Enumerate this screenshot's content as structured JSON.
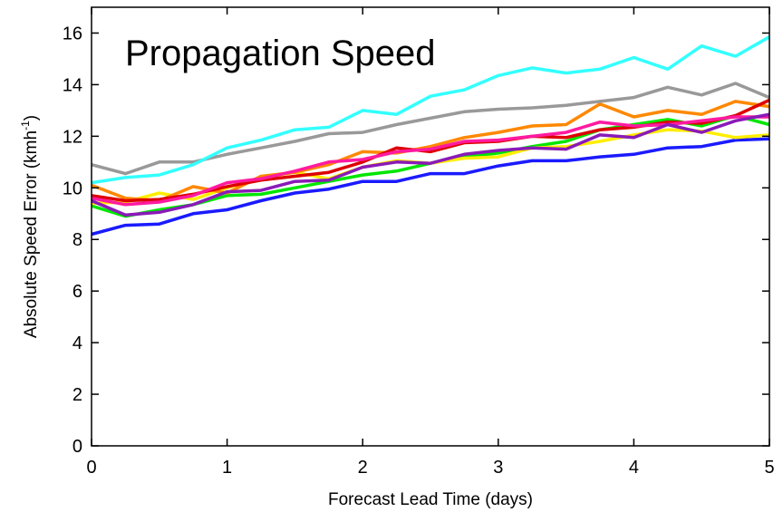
{
  "chart_data": {
    "type": "line",
    "title": "Propagation Speed",
    "xlabel": "Forecast Lead Time (days)",
    "ylabel_main": "Absolute Speed Error (kmh",
    "ylabel_sup": "-1",
    "ylabel_close": ")",
    "xlim": [
      0,
      5
    ],
    "ylim": [
      0,
      17
    ],
    "xticks": [
      0,
      1,
      2,
      3,
      4,
      5
    ],
    "yticks": [
      0,
      2,
      4,
      6,
      8,
      10,
      12,
      14,
      16
    ],
    "grid": false,
    "x": [
      0,
      0.25,
      0.5,
      0.75,
      1,
      1.25,
      1.5,
      1.75,
      2,
      2.25,
      2.5,
      2.75,
      3,
      3.25,
      3.5,
      3.75,
      4,
      4.25,
      4.5,
      4.75,
      5
    ],
    "series": [
      {
        "color": "#1a1aff",
        "values": [
          8.2,
          8.55,
          8.6,
          9.0,
          9.15,
          9.5,
          9.8,
          9.95,
          10.25,
          10.25,
          10.55,
          10.55,
          10.85,
          11.05,
          11.05,
          11.2,
          11.3,
          11.55,
          11.6,
          11.85,
          11.9
        ]
      },
      {
        "color": "#00e600",
        "values": [
          9.3,
          8.9,
          9.15,
          9.35,
          9.7,
          9.75,
          10.0,
          10.25,
          10.5,
          10.65,
          10.95,
          11.2,
          11.35,
          11.6,
          11.8,
          12.25,
          12.45,
          12.65,
          12.4,
          12.8,
          12.45
        ]
      },
      {
        "color": "#ffee00",
        "values": [
          9.4,
          9.45,
          9.8,
          9.55,
          10.0,
          10.4,
          10.6,
          10.35,
          10.8,
          11.05,
          10.95,
          11.15,
          11.2,
          11.55,
          11.6,
          11.8,
          12.05,
          12.25,
          12.2,
          11.95,
          12.05
        ]
      },
      {
        "color": "#ff8800",
        "values": [
          10.1,
          9.6,
          9.5,
          10.05,
          9.8,
          10.45,
          10.6,
          10.9,
          11.4,
          11.35,
          11.6,
          11.95,
          12.15,
          12.4,
          12.45,
          13.25,
          12.75,
          13.0,
          12.85,
          13.35,
          13.15
        ]
      },
      {
        "color": "#dd0000",
        "values": [
          9.7,
          9.5,
          9.55,
          9.75,
          10.05,
          10.3,
          10.45,
          10.6,
          11.0,
          11.55,
          11.4,
          11.75,
          11.8,
          12.0,
          11.95,
          12.25,
          12.35,
          12.55,
          12.5,
          12.8,
          13.4
        ]
      },
      {
        "color": "#ff1aa0",
        "values": [
          9.6,
          9.35,
          9.45,
          9.7,
          10.2,
          10.35,
          10.65,
          11.0,
          11.1,
          11.4,
          11.5,
          11.8,
          11.85,
          12.0,
          12.15,
          12.55,
          12.4,
          12.45,
          12.6,
          12.75,
          12.75
        ]
      },
      {
        "color": "#8a1ab8",
        "values": [
          9.5,
          8.95,
          9.05,
          9.35,
          9.85,
          9.9,
          10.25,
          10.3,
          10.8,
          11.0,
          10.95,
          11.3,
          11.45,
          11.55,
          11.5,
          12.05,
          11.95,
          12.45,
          12.15,
          12.6,
          12.85
        ]
      },
      {
        "color": "#999999",
        "values": [
          10.9,
          10.55,
          11.0,
          11.0,
          11.3,
          11.55,
          11.8,
          12.1,
          12.15,
          12.45,
          12.7,
          12.95,
          13.05,
          13.1,
          13.2,
          13.35,
          13.5,
          13.9,
          13.6,
          14.05,
          13.5
        ]
      },
      {
        "color": "#33ffff",
        "values": [
          10.2,
          10.4,
          10.5,
          10.9,
          11.55,
          11.85,
          12.25,
          12.35,
          13.0,
          12.85,
          13.55,
          13.8,
          14.35,
          14.65,
          14.45,
          14.6,
          15.05,
          14.6,
          15.5,
          15.1,
          15.85
        ]
      }
    ]
  }
}
